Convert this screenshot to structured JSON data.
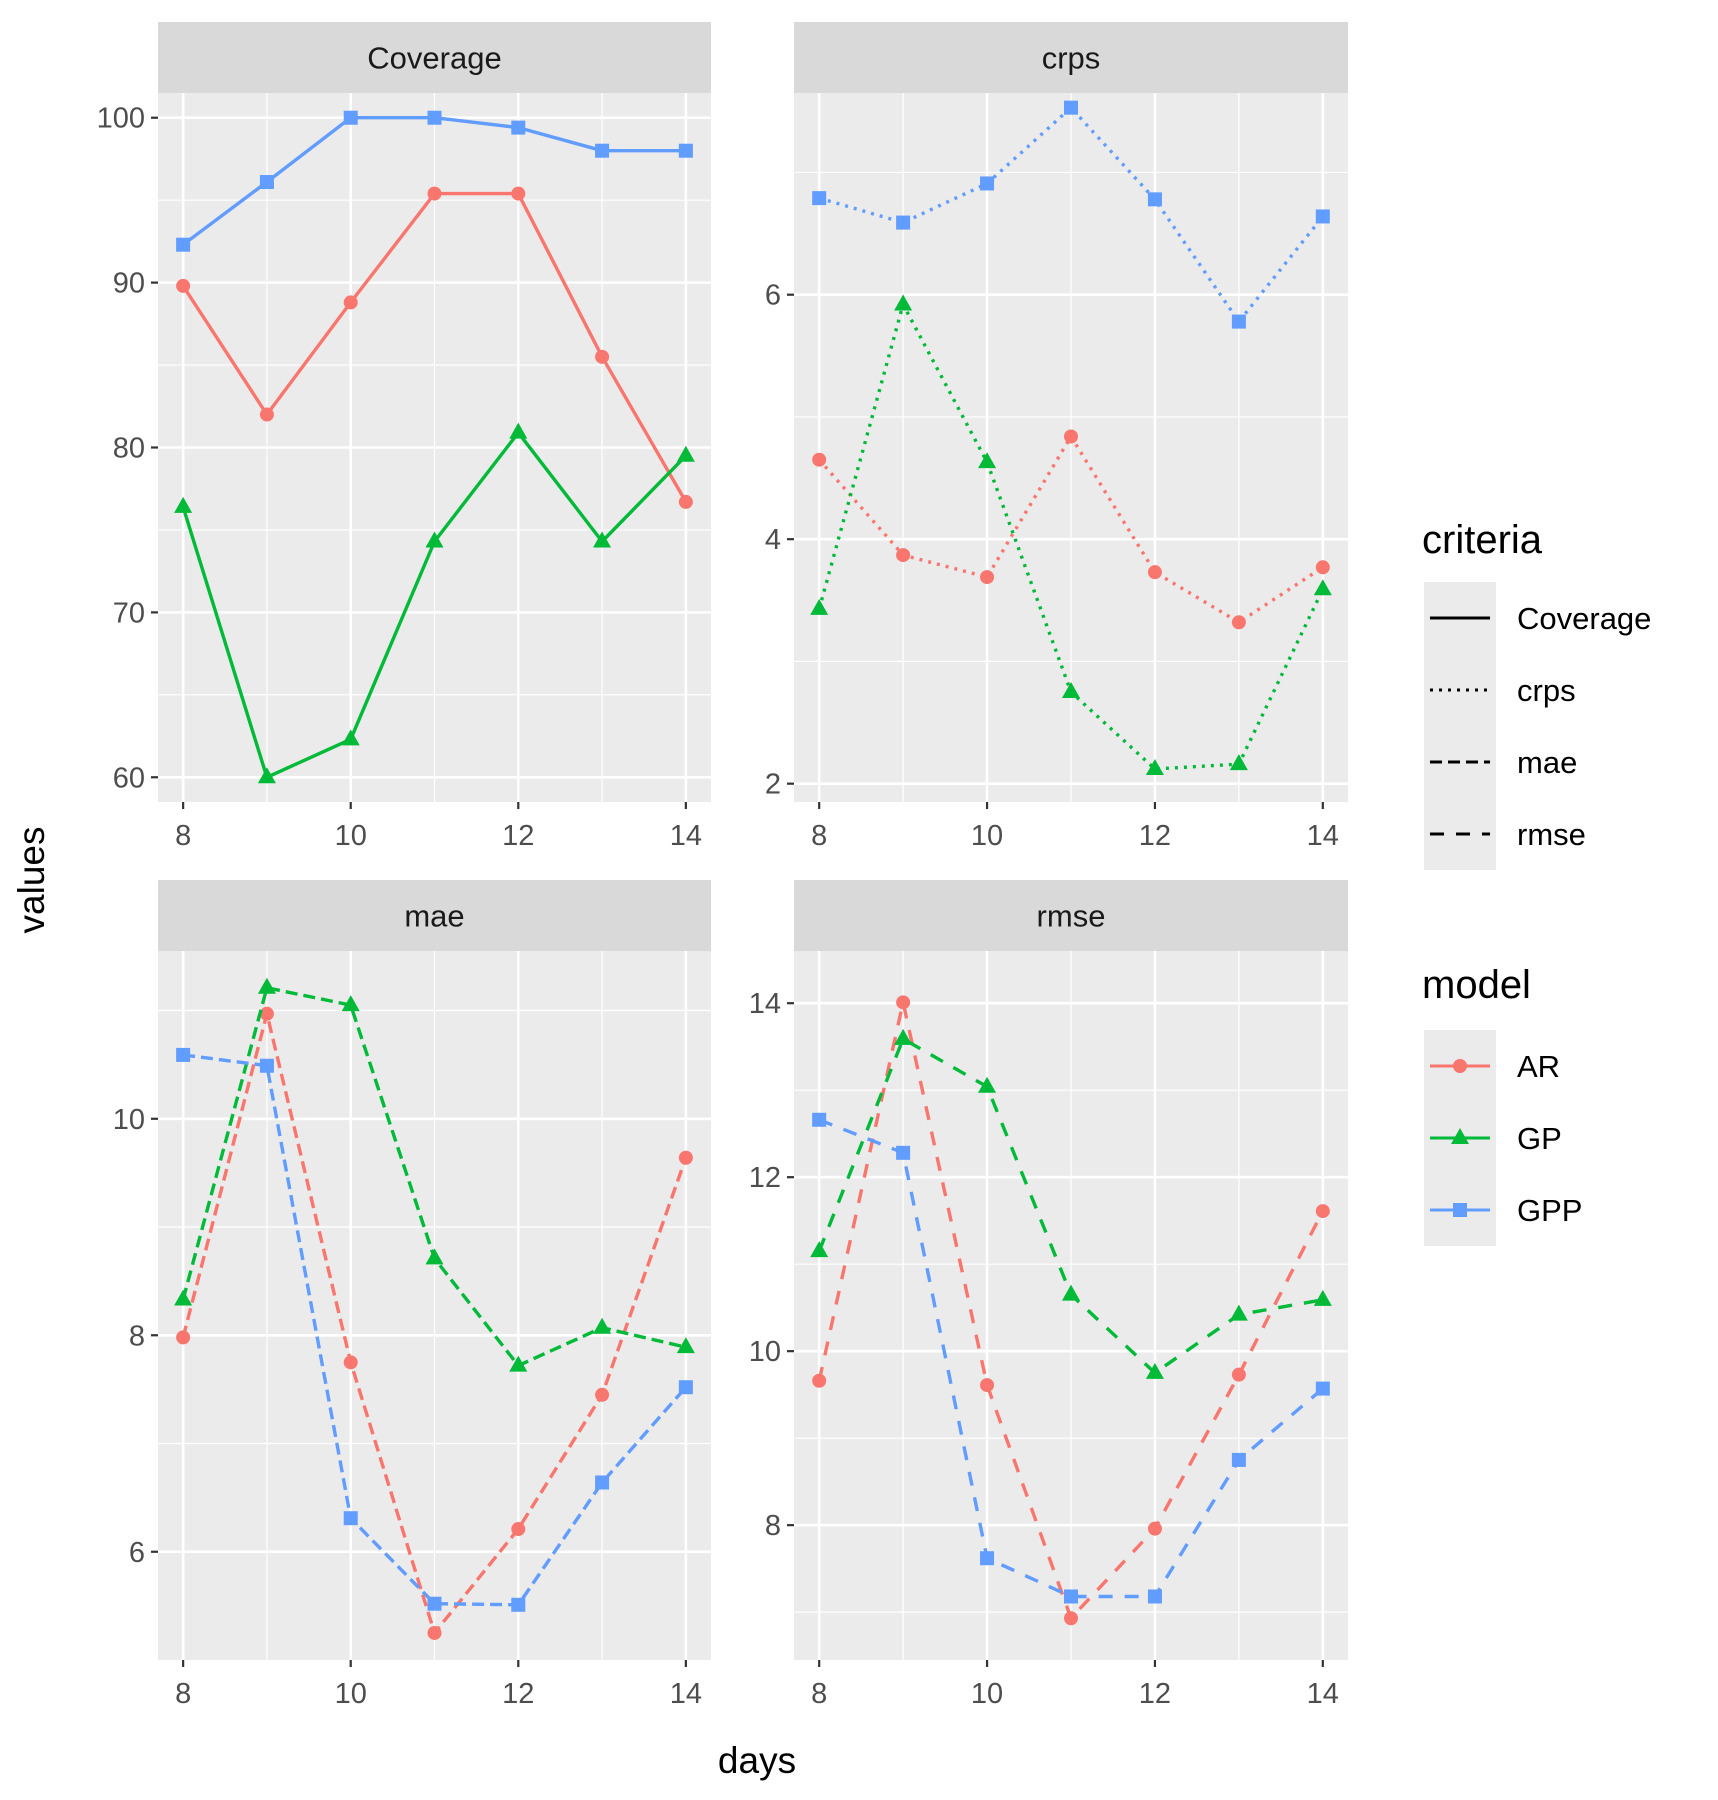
{
  "chart_data": {
    "type": "line",
    "facet": "wrap",
    "xlabel": "days",
    "ylabel": "values",
    "x": [
      8,
      9,
      10,
      11,
      12,
      13,
      14
    ],
    "x_ticks": [
      8,
      10,
      12,
      14
    ],
    "colors": {
      "AR": "#F8766D",
      "GP": "#00BA38",
      "GPP": "#619CFF"
    },
    "linetypes": {
      "Coverage": "solid",
      "crps": "dotted",
      "mae": "dashed",
      "rmse": "longdash"
    },
    "panels": [
      {
        "title": "Coverage",
        "criteria": "Coverage",
        "ylim": [
          58.5,
          101.5
        ],
        "y_ticks": [
          60,
          70,
          80,
          90,
          100
        ],
        "series": [
          {
            "name": "AR",
            "values": [
              89.8,
              82.0,
              88.8,
              95.4,
              95.4,
              85.5,
              76.7
            ]
          },
          {
            "name": "GP",
            "values": [
              76.4,
              60.0,
              62.3,
              74.3,
              80.9,
              74.3,
              79.5
            ]
          },
          {
            "name": "GPP",
            "values": [
              92.3,
              96.1,
              100.0,
              100.0,
              99.4,
              98.0,
              98.0
            ]
          }
        ]
      },
      {
        "title": "crps",
        "criteria": "crps",
        "ylim": [
          1.85,
          7.65
        ],
        "y_ticks": [
          2,
          4,
          6
        ],
        "series": [
          {
            "name": "AR",
            "values": [
              4.65,
              3.87,
              3.69,
              4.84,
              3.73,
              3.32,
              3.77
            ]
          },
          {
            "name": "GP",
            "values": [
              3.43,
              5.92,
              4.63,
              2.75,
              2.12,
              2.16,
              3.59
            ]
          },
          {
            "name": "GPP",
            "values": [
              6.79,
              6.59,
              6.91,
              7.53,
              6.78,
              5.78,
              6.64
            ]
          }
        ]
      },
      {
        "title": "mae",
        "criteria": "mae",
        "ylim": [
          5.0,
          11.55
        ],
        "y_ticks": [
          6,
          8,
          10
        ],
        "series": [
          {
            "name": "AR",
            "values": [
              7.98,
              10.97,
              7.75,
              5.25,
              6.21,
              7.45,
              9.64
            ]
          },
          {
            "name": "GP",
            "values": [
              8.33,
              11.21,
              11.05,
              8.71,
              7.72,
              8.07,
              7.89
            ]
          },
          {
            "name": "GPP",
            "values": [
              10.59,
              10.49,
              6.31,
              5.52,
              5.51,
              6.64,
              7.52
            ]
          }
        ]
      },
      {
        "title": "rmse",
        "criteria": "rmse",
        "ylim": [
          6.45,
          14.6
        ],
        "y_ticks": [
          8,
          10,
          12,
          14
        ],
        "series": [
          {
            "name": "AR",
            "values": [
              9.66,
              14.01,
              9.61,
              6.93,
              7.96,
              9.73,
              11.61
            ]
          },
          {
            "name": "GP",
            "values": [
              11.15,
              13.59,
              13.04,
              10.65,
              9.75,
              10.42,
              10.59
            ]
          },
          {
            "name": "GPP",
            "values": [
              12.66,
              12.28,
              7.62,
              7.18,
              7.18,
              8.75,
              9.57
            ]
          }
        ]
      }
    ],
    "legend": {
      "position": "right",
      "criteria": {
        "title": "criteria",
        "items": [
          "Coverage",
          "crps",
          "mae",
          "rmse"
        ]
      },
      "model": {
        "title": "model",
        "items": [
          "AR",
          "GP",
          "GPP"
        ]
      }
    }
  }
}
